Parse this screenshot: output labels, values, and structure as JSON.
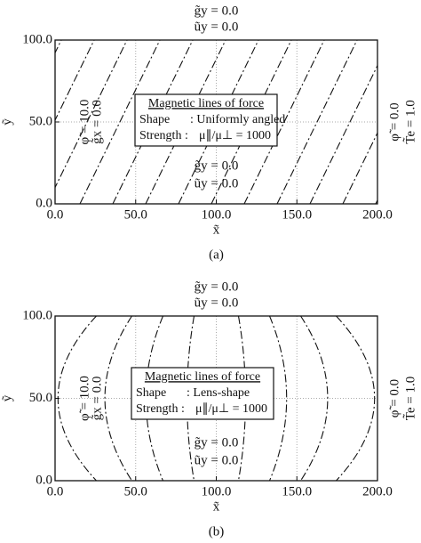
{
  "figures": [
    {
      "label": "(a)",
      "top_labels": [
        "g̃y = 0.0",
        "ũy = 0.0"
      ],
      "bottom_labels": [
        "g̃y = 0.0",
        "ũy = 0.0"
      ],
      "left_labels": [
        "φ̃ = 10.0",
        "g̃x = 0.0"
      ],
      "right_labels": [
        "φ̃ = 0.0",
        "T̃e = 1.0"
      ],
      "legend": {
        "title": "Magnetic lines of force",
        "shape_label": "Shape",
        "shape_value": ": Uniformly angled",
        "strength_label": "Strength :",
        "strength_value": "μ∥/μ⊥ = 1000"
      },
      "field_shape": "angled",
      "x_label": "x̃",
      "y_label": "ỹ",
      "xlim": [
        0,
        200
      ],
      "ylim": [
        0,
        100
      ],
      "xticks": [
        {
          "value": 0,
          "label": "0.0"
        },
        {
          "value": 50,
          "label": "50.0"
        },
        {
          "value": 100,
          "label": "100.0"
        },
        {
          "value": 150,
          "label": "150.0"
        },
        {
          "value": 200,
          "label": "200.0"
        }
      ],
      "yticks": [
        {
          "value": 0,
          "label": "0.0"
        },
        {
          "value": 50,
          "label": "50.0"
        },
        {
          "value": 100,
          "label": "100.0"
        }
      ],
      "grid": true
    },
    {
      "label": "(b)",
      "top_labels": [
        "g̃y = 0.0",
        "ũy = 0.0"
      ],
      "bottom_labels": [
        "g̃y = 0.0",
        "ũy = 0.0"
      ],
      "left_labels": [
        "φ̃ = 10.0",
        "g̃x = 0.0"
      ],
      "right_labels": [
        "φ̃ = 0.0",
        "T̃e = 1.0"
      ],
      "legend": {
        "title": "Magnetic lines of force",
        "shape_label": "Shape",
        "shape_value": ": Lens-shape",
        "strength_label": "Strength :",
        "strength_value": "μ∥/μ⊥ = 1000"
      },
      "field_shape": "lens",
      "x_label": "x̃",
      "y_label": "ỹ",
      "xlim": [
        0,
        200
      ],
      "ylim": [
        0,
        100
      ],
      "xticks": [
        {
          "value": 0,
          "label": "0.0"
        },
        {
          "value": 50,
          "label": "50.0"
        },
        {
          "value": 100,
          "label": "100.0"
        },
        {
          "value": 150,
          "label": "150.0"
        },
        {
          "value": 200,
          "label": "200.0"
        }
      ],
      "yticks": [
        {
          "value": 0,
          "label": "0.0"
        },
        {
          "value": 50,
          "label": "50.0"
        },
        {
          "value": 100,
          "label": "100.0"
        }
      ],
      "grid": true
    }
  ]
}
